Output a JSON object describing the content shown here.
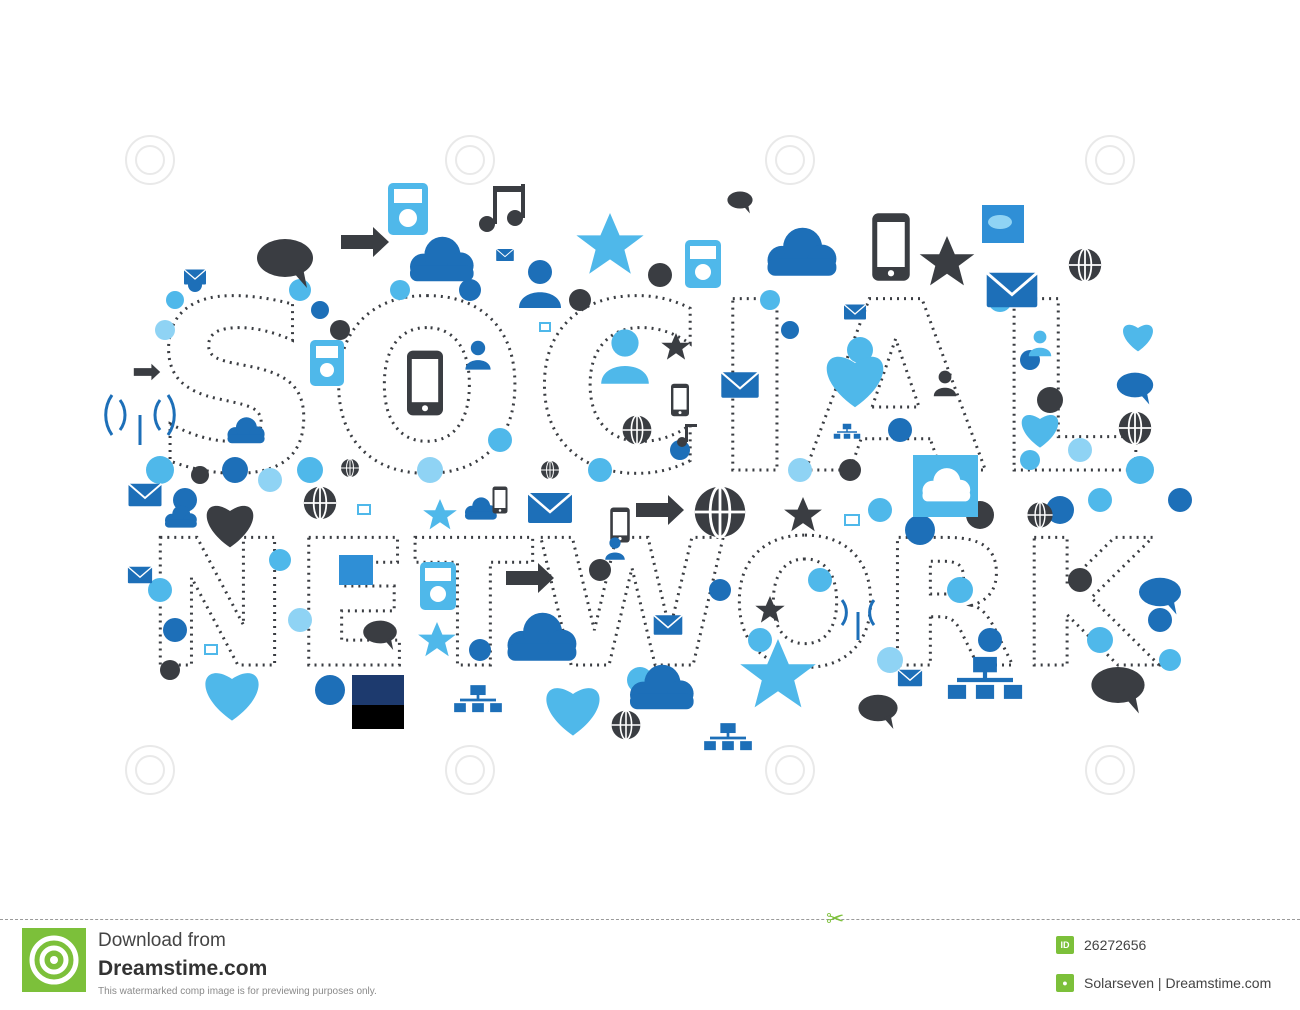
{
  "artwork": {
    "line1_word": "SOCIAL",
    "line2_word": "NETWORK",
    "colors": {
      "dark": "#3a3d42",
      "blue": "#1d6fb8",
      "mid_blue": "#2f8fd6",
      "light_blue": "#4fb8ea",
      "pale_blue": "#8fd3f4"
    },
    "watermark_text": "dreamstime.com",
    "icons": [
      "speech-bubble-icon",
      "arrow-icon",
      "cloud-icon",
      "music-note-icon",
      "star-icon",
      "mp3-player-icon",
      "smartphone-icon",
      "envelope-icon",
      "globe-icon",
      "heart-icon",
      "user-icon",
      "wifi-tower-icon",
      "network-icon",
      "monitor-icon",
      "photo-icon"
    ]
  },
  "footer": {
    "download_from": "Download from",
    "site_name": "Dreamstime.com",
    "notice": "This watermarked comp image is for previewing purposes only.",
    "id_badge": "ID",
    "image_id": "26272656",
    "author_line": "Solarseven | Dreamstime.com"
  }
}
